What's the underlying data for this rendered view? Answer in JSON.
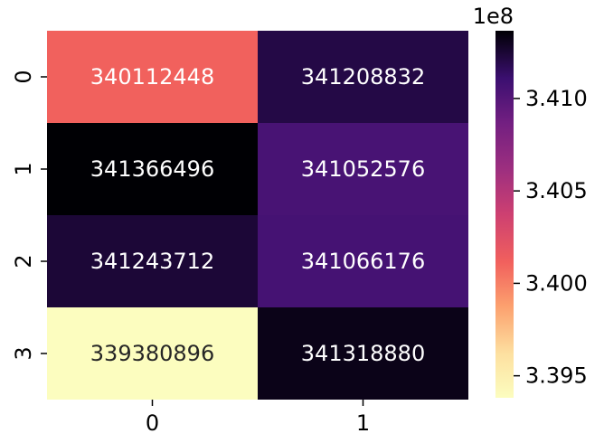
{
  "chart_data": {
    "type": "heatmap",
    "title": "",
    "xlabel": "",
    "ylabel": "",
    "x_categories": [
      "0",
      "1"
    ],
    "y_categories": [
      "0",
      "1",
      "2",
      "3"
    ],
    "values": [
      [
        340112448,
        341208832
      ],
      [
        341366496,
        341052576
      ],
      [
        341243712,
        341066176
      ],
      [
        339380896,
        341318880
      ]
    ],
    "value_labels": [
      [
        "340112448",
        "341208832"
      ],
      [
        "341366496",
        "341052576"
      ],
      [
        "341243712",
        "341066176"
      ],
      [
        "339380896",
        "341318880"
      ]
    ],
    "colormap": "magma",
    "colorbar": {
      "vmin": 339380896,
      "vmax": 341366496,
      "offset_label": "1e8",
      "ticks": [
        {
          "value": 339500000,
          "label": "3.395"
        },
        {
          "value": 340000000,
          "label": "3.400"
        },
        {
          "value": 340500000,
          "label": "3.405"
        },
        {
          "value": 341000000,
          "label": "3.410"
        }
      ]
    }
  }
}
